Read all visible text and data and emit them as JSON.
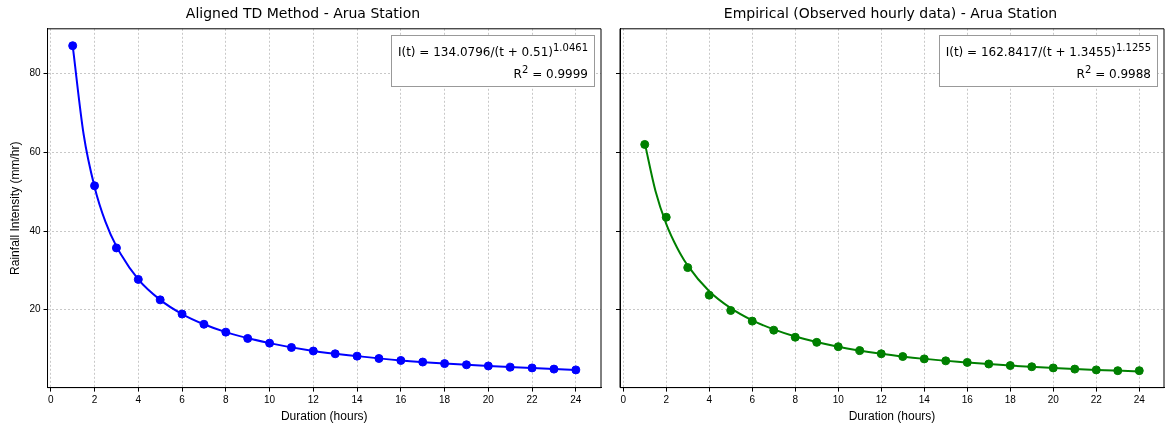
{
  "chart_data": [
    {
      "type": "scatter",
      "title": "Aligned TD Method - Arua Station",
      "xlabel": "Duration (hours)",
      "ylabel": "Rainfall Intensity (mm/hr)",
      "x": [
        1,
        2,
        3,
        4,
        5,
        6,
        7,
        8,
        9,
        10,
        11,
        12,
        13,
        14,
        15,
        16,
        17,
        18,
        19,
        20,
        21,
        22,
        23,
        24
      ],
      "series": [
        {
          "type": "line",
          "color": "#0000ff",
          "marker": "none",
          "x": [
            1,
            1.5,
            2,
            2.5,
            3,
            4,
            5,
            6,
            7,
            8,
            10,
            12,
            14,
            16,
            18,
            20,
            22,
            24
          ],
          "values": [
            87.1,
            64.6,
            51.2,
            42.3,
            36.1,
            27.7,
            22.5,
            18.9,
            16.3,
            14.3,
            11.5,
            9.5,
            8.2,
            7.1,
            6.3,
            5.7,
            5.2,
            4.7
          ]
        },
        {
          "type": "scatter",
          "color": "#0000ff",
          "marker": "circle",
          "values": [
            87.1,
            51.5,
            35.7,
            27.7,
            22.5,
            18.9,
            16.3,
            14.3,
            12.7,
            11.5,
            10.4,
            9.5,
            8.8,
            8.2,
            7.6,
            7.1,
            6.7,
            6.3,
            6.0,
            5.7,
            5.4,
            5.2,
            4.9,
            4.7
          ]
        }
      ],
      "xlim": [
        -0.15,
        25.15
      ],
      "xticks": [
        0,
        2,
        4,
        6,
        8,
        10,
        12,
        14,
        16,
        18,
        20,
        22,
        24
      ],
      "ylim": [
        0.2,
        91.4
      ],
      "yticks": [
        20,
        40,
        60,
        80
      ],
      "grid": true,
      "legend": false,
      "annotations": [
        "I(t) = 134.0796/(t + 0.51)$^{1.0461}$",
        "R$^{2}$ = 0.9999"
      ]
    },
    {
      "type": "scatter",
      "title": "Empirical (Observed hourly data) - Arua Station",
      "xlabel": "Duration (hours)",
      "x": [
        1,
        2,
        3,
        4,
        5,
        6,
        7,
        8,
        9,
        10,
        11,
        12,
        13,
        14,
        15,
        16,
        17,
        18,
        19,
        20,
        21,
        22,
        23,
        24
      ],
      "series": [
        {
          "type": "line",
          "color": "#008000",
          "marker": "none",
          "x": [
            1,
            1.5,
            2,
            2.5,
            3,
            4,
            5,
            6,
            7,
            8,
            10,
            12,
            14,
            16,
            18,
            20,
            22,
            24
          ],
          "values": [
            62.4,
            50.2,
            41.8,
            35.8,
            31.2,
            24.7,
            20.4,
            17.3,
            15.0,
            13.2,
            10.6,
            8.8,
            7.5,
            6.6,
            5.8,
            5.2,
            4.7,
            4.3
          ]
        },
        {
          "type": "scatter",
          "color": "#008000",
          "marker": "circle",
          "values": [
            62,
            43.5,
            30.7,
            23.7,
            19.8,
            17.1,
            14.8,
            13.0,
            11.7,
            10.6,
            9.6,
            8.8,
            8.1,
            7.5,
            7.0,
            6.6,
            6.2,
            5.8,
            5.5,
            5.2,
            4.9,
            4.7,
            4.5,
            4.5
          ]
        }
      ],
      "xlim": [
        -0.15,
        25.15
      ],
      "xticks": [
        0,
        2,
        4,
        6,
        8,
        10,
        12,
        14,
        16,
        18,
        20,
        22,
        24
      ],
      "ylim": [
        0.2,
        91.4
      ],
      "yticks": [
        20,
        40,
        60,
        80
      ],
      "grid": true,
      "legend": false,
      "tick_labels": "x",
      "annotations": [
        "I(t) = 162.8417/(t + 1.3455)$^{1.1255}$",
        "R$^{2}$ = 0.9988"
      ]
    }
  ]
}
